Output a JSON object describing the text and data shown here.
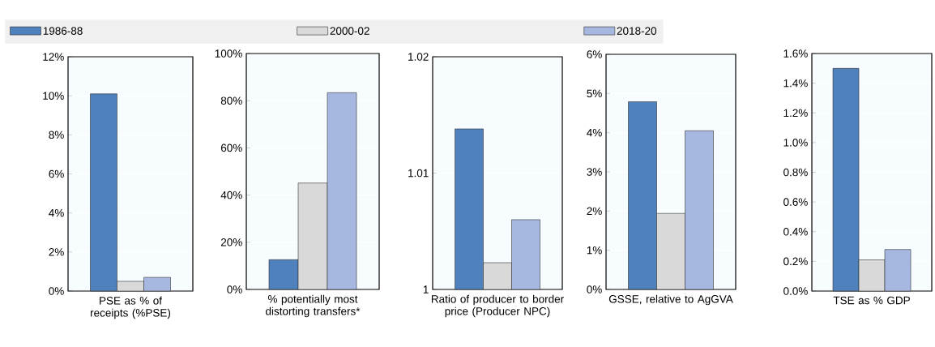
{
  "chart_data": [
    {
      "type": "bar",
      "categories": [
        "PSE as % of receipts (%PSE)"
      ],
      "series": [
        {
          "name": "1986-88",
          "color": "#4f81bd",
          "values": [
            10.1
          ]
        },
        {
          "name": "2000-02",
          "color": "#d9d9d9",
          "values": [
            0.5
          ]
        },
        {
          "name": "2018-20",
          "color": "#a6b7e0",
          "values": [
            0.7
          ]
        }
      ],
      "ylim": [
        0,
        12
      ],
      "yticks": [
        {
          "value": 0,
          "label": "0%"
        },
        {
          "value": 2,
          "label": "2%"
        },
        {
          "value": 4,
          "label": "4%"
        },
        {
          "value": 6,
          "label": "6%"
        },
        {
          "value": 8,
          "label": "8%"
        },
        {
          "value": 10,
          "label": "10%"
        },
        {
          "value": 12,
          "label": "12%"
        }
      ],
      "grid": "y",
      "legend": "top"
    },
    {
      "type": "bar",
      "categories": [
        "% potentially most distorting transfers*"
      ],
      "series": [
        {
          "color": "#4f81bd",
          "values": [
            12.6
          ]
        },
        {
          "color": "#d9d9d9",
          "values": [
            45.1
          ]
        },
        {
          "color": "#a6b7e0",
          "values": [
            83.4
          ]
        }
      ],
      "ylim": [
        0,
        100
      ],
      "yticks": [
        {
          "value": 0,
          "label": "0%"
        },
        {
          "value": 20,
          "label": "20%"
        },
        {
          "value": 40,
          "label": "40%"
        },
        {
          "value": 60,
          "label": "60%"
        },
        {
          "value": 80,
          "label": "80%"
        },
        {
          "value": 100,
          "label": "100%"
        }
      ],
      "grid": "y"
    },
    {
      "type": "bar",
      "categories": [
        "Ratio of producer to border price (Producer NPC)"
      ],
      "series": [
        {
          "color": "#4f81bd",
          "values": [
            1.0138
          ]
        },
        {
          "color": "#d9d9d9",
          "values": [
            1.0023
          ]
        },
        {
          "color": "#a6b7e0",
          "values": [
            1.006
          ]
        }
      ],
      "ylim": [
        1,
        1.02
      ],
      "yticks": [
        1,
        1.01,
        1.02
      ],
      "grid": "y"
    },
    {
      "type": "bar",
      "categories": [
        "GSSE, relative to AgGVA"
      ],
      "series": [
        {
          "color": "#4f81bd",
          "values": [
            4.79
          ]
        },
        {
          "color": "#d9d9d9",
          "values": [
            1.94
          ]
        },
        {
          "color": "#a6b7e0",
          "values": [
            4.05
          ]
        }
      ],
      "ylim": [
        0,
        6
      ],
      "yticks": [
        {
          "value": 0,
          "label": "0%"
        },
        {
          "value": 1,
          "label": "1%"
        },
        {
          "value": 2,
          "label": "2%"
        },
        {
          "value": 3,
          "label": "3%"
        },
        {
          "value": 4,
          "label": "4%"
        },
        {
          "value": 5,
          "label": "5%"
        },
        {
          "value": 6,
          "label": "6%"
        }
      ],
      "grid": "y"
    },
    {
      "type": "bar",
      "categories": [
        "TSE as % GDP"
      ],
      "series": [
        {
          "color": "#4f81bd",
          "values": [
            1.5
          ]
        },
        {
          "color": "#d9d9d9",
          "values": [
            0.21
          ]
        },
        {
          "color": "#a6b7e0",
          "values": [
            0.28
          ]
        }
      ],
      "ylim": [
        0,
        1.6
      ],
      "yticks": [
        {
          "value": 0,
          "label": "0.0%"
        },
        {
          "value": 0.2,
          "label": "0.2%"
        },
        {
          "value": 0.4,
          "label": "0.4%"
        },
        {
          "value": 0.6,
          "label": "0.6%"
        },
        {
          "value": 0.8,
          "label": "0.8%"
        },
        {
          "value": 1.0,
          "label": "1.0%"
        },
        {
          "value": 1.2,
          "label": "1.2%"
        },
        {
          "value": 1.4,
          "label": "1.4%"
        },
        {
          "value": 1.6,
          "label": "1.6%"
        }
      ],
      "grid": "y"
    }
  ]
}
